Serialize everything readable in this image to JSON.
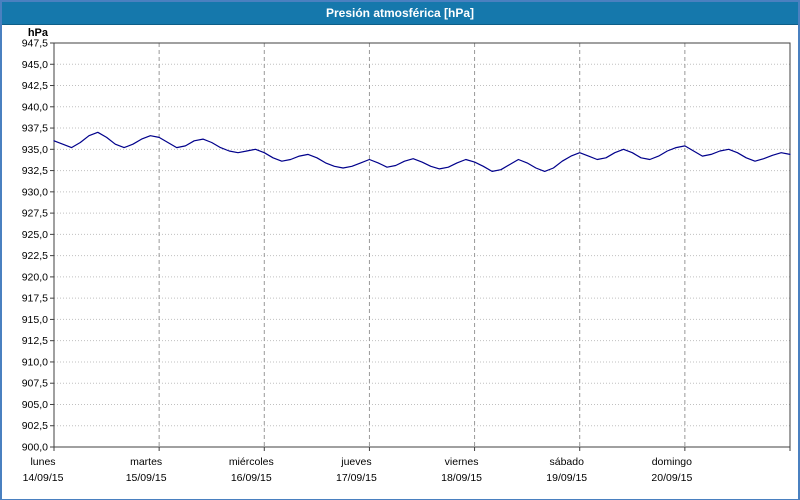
{
  "title": "Presión atmosférica [hPa]",
  "colors": {
    "frame": "#4a80c0",
    "titlebar": "#1578ac",
    "title_text": "#ffffff",
    "plot_border": "#404040",
    "h_grid": "#c0c0c0",
    "v_grid": "#999999",
    "line": "#00008b"
  },
  "chart_data": {
    "type": "line",
    "title": "Presión atmosférica [hPa]",
    "ylabel": "hPa",
    "xlabel": "",
    "ylim": [
      900.0,
      947.5
    ],
    "y_tick_step": 2.5,
    "grid": "on",
    "legend": "none",
    "y_ticks": [
      947.5,
      945.0,
      942.5,
      940.0,
      937.5,
      935.0,
      932.5,
      930.0,
      927.5,
      925.0,
      922.5,
      920.0,
      917.5,
      915.0,
      912.5,
      910.0,
      907.5,
      905.0,
      902.5,
      900.0
    ],
    "y_tick_labels": [
      "947,5",
      "945,0",
      "942,5",
      "940,0",
      "937,5",
      "935,0",
      "932,5",
      "930,0",
      "927,5",
      "925,0",
      "922,5",
      "920,0",
      "917,5",
      "915,0",
      "912,5",
      "910,0",
      "907,5",
      "905,0",
      "902,5",
      "900,0"
    ],
    "x_categories": [
      {
        "name": "lunes",
        "date": "14/09/15"
      },
      {
        "name": "martes",
        "date": "15/09/15"
      },
      {
        "name": "miércoles",
        "date": "16/09/15"
      },
      {
        "name": "jueves",
        "date": "17/09/15"
      },
      {
        "name": "viernes",
        "date": "18/09/15"
      },
      {
        "name": "sábado",
        "date": "19/09/15"
      },
      {
        "name": "domingo",
        "date": "20/09/15"
      }
    ],
    "x_sample_interval_hours": 2,
    "series": [
      {
        "name": "Presión atmosférica",
        "color": "#00008b",
        "values": [
          936.0,
          935.6,
          935.2,
          935.8,
          936.6,
          937.0,
          936.4,
          935.6,
          935.2,
          935.6,
          936.2,
          936.6,
          936.4,
          935.8,
          935.2,
          935.4,
          936.0,
          936.2,
          935.8,
          935.2,
          934.8,
          934.6,
          934.8,
          935.0,
          934.6,
          934.0,
          933.6,
          933.8,
          934.2,
          934.4,
          934.0,
          933.4,
          933.0,
          932.8,
          933.0,
          933.4,
          933.8,
          933.4,
          932.9,
          933.1,
          933.6,
          933.9,
          933.5,
          933.0,
          932.7,
          932.9,
          933.4,
          933.8,
          933.5,
          933.0,
          932.4,
          932.6,
          933.2,
          933.8,
          933.4,
          932.8,
          932.4,
          932.8,
          933.6,
          934.2,
          934.6,
          934.2,
          933.8,
          934.0,
          934.6,
          935.0,
          934.6,
          934.0,
          933.8,
          934.2,
          934.8,
          935.2,
          935.4,
          934.8,
          934.2,
          934.4,
          934.8,
          935.0,
          934.6,
          934.0,
          933.6,
          933.9,
          934.3,
          934.6,
          934.4
        ]
      }
    ]
  }
}
